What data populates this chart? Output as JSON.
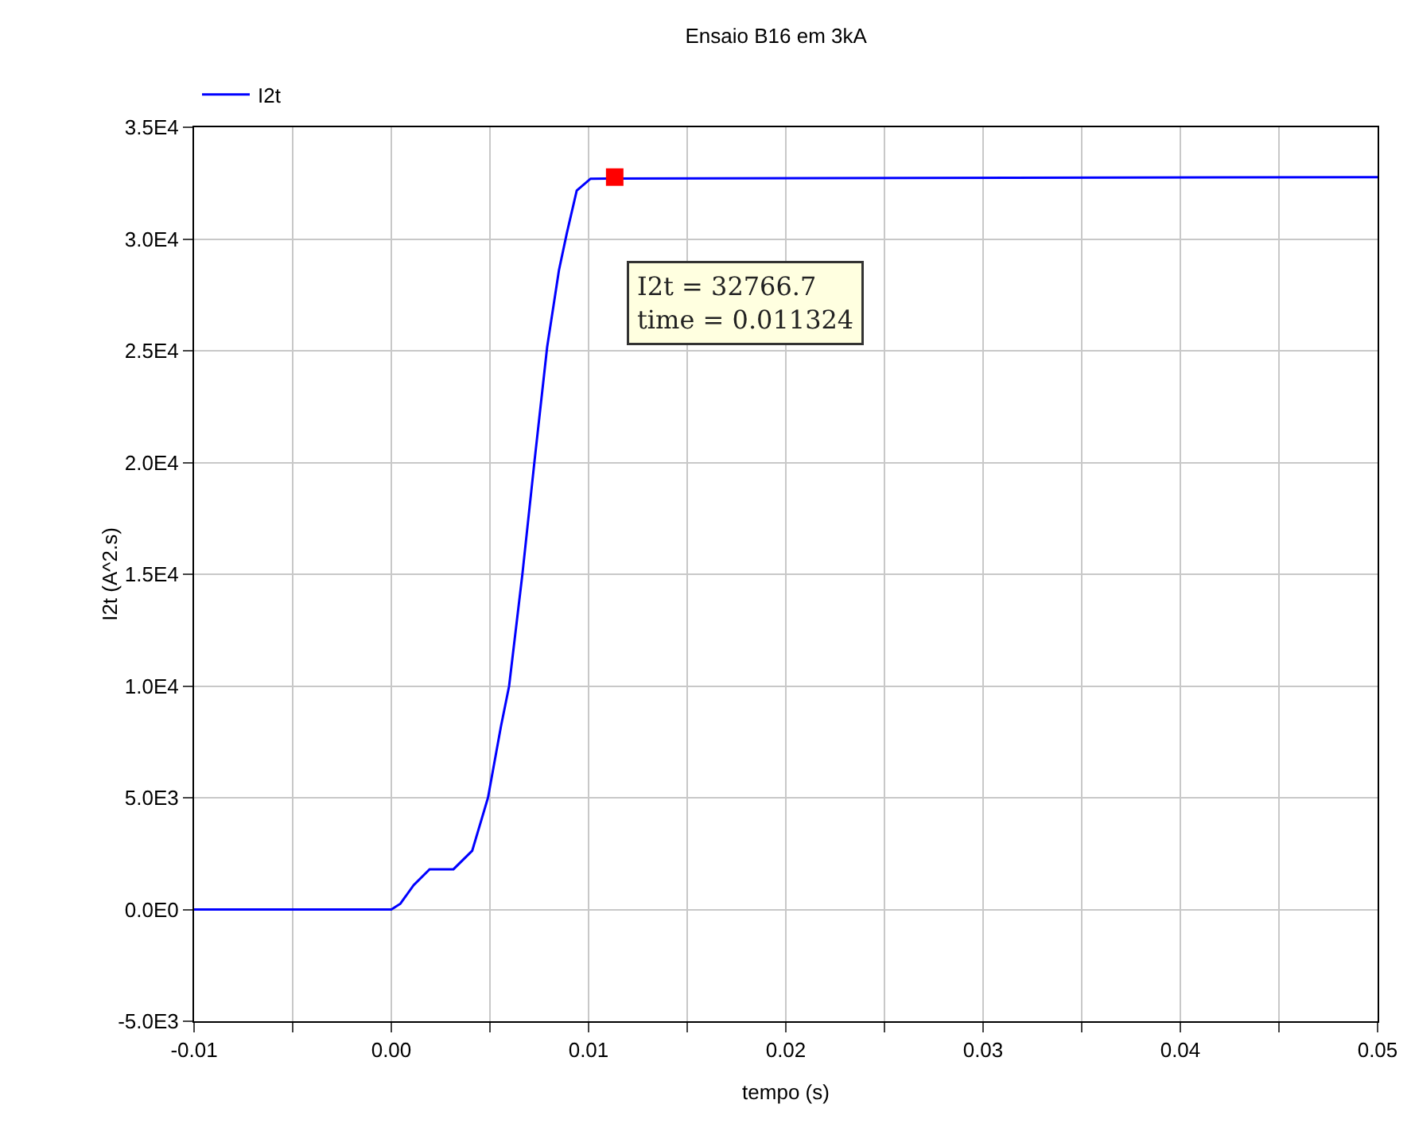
{
  "chart_data": {
    "type": "line",
    "title": "Ensaio B16 em 3kA",
    "xlabel": "tempo (s)",
    "ylabel": "I2t (A^2.s)",
    "xlim": [
      -0.01,
      0.05
    ],
    "xticks": [
      {
        "value": -0.01,
        "label": "-0.01"
      },
      {
        "value": -0.005,
        "label": null
      },
      {
        "value": 0,
        "label": "0.00"
      },
      {
        "value": 0.005,
        "label": null
      },
      {
        "value": 0.01,
        "label": "0.01"
      },
      {
        "value": 0.015,
        "label": null
      },
      {
        "value": 0.02,
        "label": "0.02"
      },
      {
        "value": 0.025,
        "label": null
      },
      {
        "value": 0.03,
        "label": "0.03"
      },
      {
        "value": 0.035,
        "label": null
      },
      {
        "value": 0.04,
        "label": "0.04"
      },
      {
        "value": 0.045,
        "label": null
      },
      {
        "value": 0.05,
        "label": "0.05"
      }
    ],
    "ylim": [
      -5000,
      35000
    ],
    "yticks": [
      {
        "value": -5000,
        "label": "-5.0E3"
      },
      {
        "value": 0,
        "label": "0.0E0"
      },
      {
        "value": 5000,
        "label": "5.0E3"
      },
      {
        "value": 10000,
        "label": "1.0E4"
      },
      {
        "value": 15000,
        "label": "1.5E4"
      },
      {
        "value": 20000,
        "label": "2.0E4"
      },
      {
        "value": 25000,
        "label": "2.5E4"
      },
      {
        "value": 30000,
        "label": "3.0E4"
      },
      {
        "value": 35000,
        "label": "3.5E4"
      }
    ],
    "grid": true,
    "legend": "top left",
    "line_style": "solid",
    "series": [
      {
        "name": "I2t",
        "color": "#0000ff",
        "marker": "none",
        "x": [
          -0.01,
          0,
          0.00046,
          0.00113,
          0.00194,
          0.00315,
          0.0041,
          0.0049,
          0.00556,
          0.00597,
          0.00664,
          0.00726,
          0.0079,
          0.0085,
          0.0089,
          0.0094,
          0.0101,
          0.05
        ],
        "values": [
          0,
          0,
          260,
          1090,
          1800,
          1800,
          2630,
          5000,
          8200,
          9990,
          14970,
          20070,
          25170,
          28610,
          30270,
          32170,
          32700,
          32770
        ]
      },
      {
        "type": "scatter",
        "color": "#ff0000",
        "marker": "square",
        "x": [
          0.011324
        ],
        "values": [
          32770
        ]
      }
    ],
    "annotations": [
      "I2t = 32766.7\ntime = 0.011324"
    ]
  }
}
